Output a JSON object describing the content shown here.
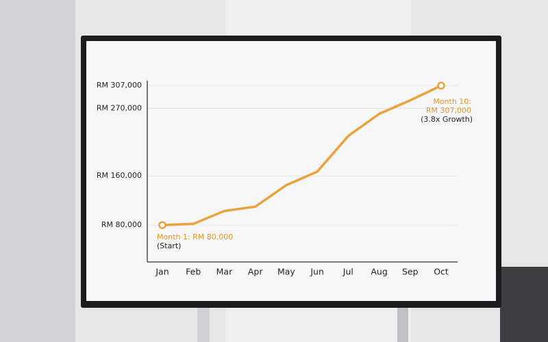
{
  "chart_data": {
    "type": "line",
    "categories": [
      "Jan",
      "Feb",
      "Mar",
      "Apr",
      "May",
      "Jun",
      "Jul",
      "Aug",
      "Sep",
      "Oct"
    ],
    "series": [
      {
        "color": "#eba23a",
        "values": [
          80000,
          82000,
          103000,
          110000,
          145000,
          167000,
          225000,
          261000,
          283000,
          307000
        ]
      }
    ],
    "ylim": [
      20000,
      315000
    ],
    "yticks": [
      {
        "value": 80000,
        "label": "RM 80,000"
      },
      {
        "value": 160000,
        "label": "RM 160,000"
      },
      {
        "value": 270000,
        "label": "RM 270,000"
      },
      {
        "value": 307000,
        "label": "RM 307,000"
      }
    ],
    "grid": true,
    "annotations": [
      "Month 1: RM 80,000",
      "(Start)",
      "Month 10:",
      "RM 307,000",
      "(3.8x Growth)"
    ]
  }
}
